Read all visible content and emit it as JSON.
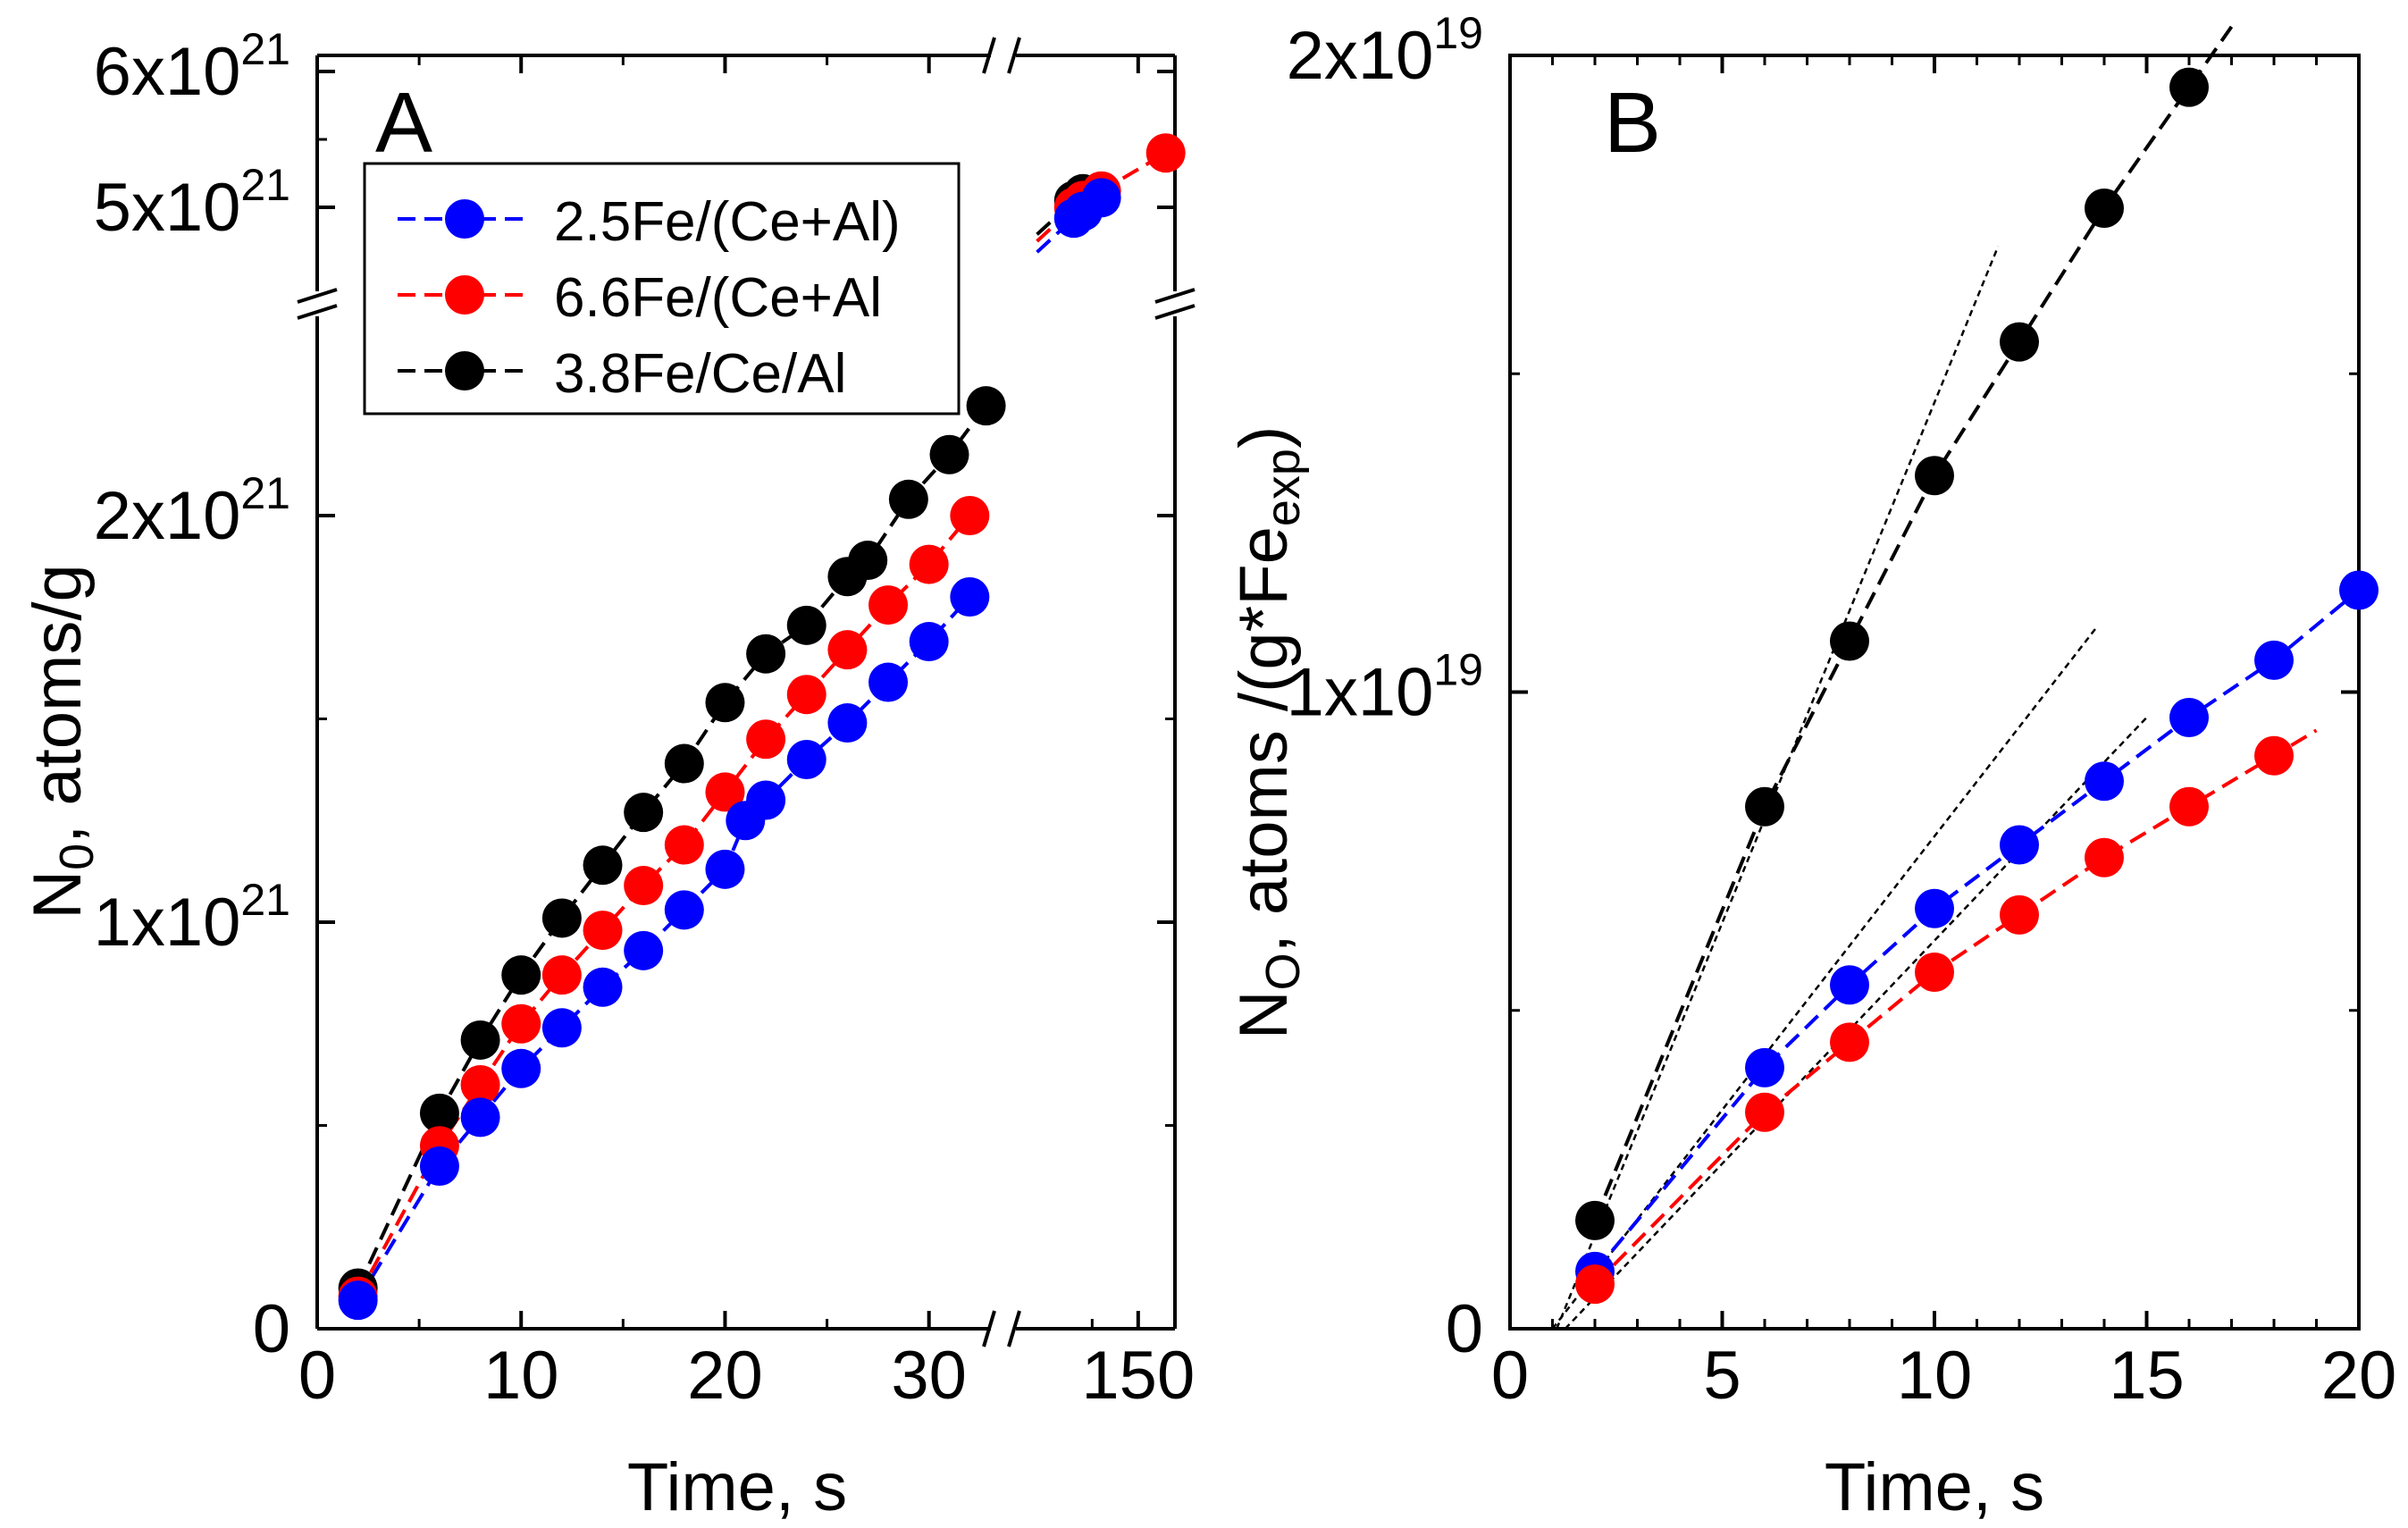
{
  "chart_data": [
    {
      "panel": "A",
      "type": "scatter",
      "panel_label": "A",
      "xlabel": "Time, s",
      "ylabel_main": "N",
      "ylabel_sub": "0",
      "ylabel_rest": ", atoms/g",
      "x_axis_break": true,
      "y_axis_break": true,
      "x_ticks": [
        {
          "x": 0,
          "label": "0"
        },
        {
          "x": 10,
          "label": "10"
        },
        {
          "x": 20,
          "label": "20"
        },
        {
          "x": 30,
          "label": "30"
        },
        {
          "x": 150,
          "label": "150"
        }
      ],
      "y_ticks": [
        {
          "y": 0,
          "base": "0",
          "exp": ""
        },
        {
          "y": 1e+21,
          "base": "1x10",
          "exp": "21"
        },
        {
          "y": 2e+21,
          "base": "2x10",
          "exp": "21"
        },
        {
          "y": 5e+21,
          "base": "5x10",
          "exp": "21"
        },
        {
          "y": 6e+21,
          "base": "6x10",
          "exp": "21"
        }
      ],
      "legend": {
        "placement": "top-left",
        "entries": [
          {
            "label": "2.5Fe/(Ce+Al)",
            "color": "#0000ff"
          },
          {
            "label": "6.6Fe/(Ce+Al",
            "color": "#ff0000"
          },
          {
            "label": "3.8Fe/Ce/Al",
            "color": "#000000"
          }
        ]
      },
      "series": [
        {
          "name": "2.5Fe/(Ce+Al)",
          "color": "#0000ff",
          "x": [
            2,
            6,
            8,
            10,
            12,
            14,
            16,
            18,
            20,
            21,
            22,
            24,
            26,
            28,
            30,
            32
          ],
          "y": [
            7e+19,
            4e+20,
            5.2e+20,
            6.4e+20,
            7.4e+20,
            8.4e+20,
            9.3e+20,
            1.03e+21,
            1.13e+21,
            1.25e+21,
            1.3e+21,
            1.4e+21,
            1.49e+21,
            1.59e+21,
            1.69e+21,
            1.8e+21
          ],
          "upper_x": [
            143,
            144,
            146
          ],
          "upper_y": [
            4.92e+21,
            4.97e+21,
            5.07e+21
          ]
        },
        {
          "name": "6.6Fe/(Ce+Al",
          "color": "#ff0000",
          "x": [
            2,
            6,
            8,
            10,
            12,
            14,
            16,
            18,
            20,
            22,
            24,
            26,
            28,
            30,
            32
          ],
          "y": [
            8e+19,
            4.5e+20,
            6e+20,
            7.5e+20,
            8.7e+20,
            9.8e+20,
            1.09e+21,
            1.19e+21,
            1.32e+21,
            1.45e+21,
            1.56e+21,
            1.67e+21,
            1.78e+21,
            1.88e+21,
            2e+21
          ],
          "upper_x": [
            143,
            144,
            146,
            153
          ],
          "upper_y": [
            5e+21,
            5.05e+21,
            5.12e+21,
            5.4e+21
          ]
        },
        {
          "name": "3.8Fe/Ce/Al",
          "color": "#000000",
          "x": [
            2,
            6,
            8,
            10,
            12,
            14,
            16,
            18,
            20,
            22,
            24,
            26,
            27,
            29,
            31,
            32.8
          ],
          "y": [
            1e+20,
            5.3e+20,
            7.1e+20,
            8.7e+20,
            1.01e+21,
            1.14e+21,
            1.27e+21,
            1.39e+21,
            1.54e+21,
            1.66e+21,
            1.73e+21,
            1.85e+21,
            1.89e+21,
            2.04e+21,
            2.15e+21,
            2.27e+21
          ],
          "upper_x": [
            143,
            144
          ],
          "upper_y": [
            5.05e+21,
            5.1e+21
          ]
        }
      ]
    },
    {
      "panel": "B",
      "type": "scatter",
      "panel_label": "B",
      "xlabel": "Time, s",
      "ylabel_main": "N",
      "ylabel_sub": "O",
      "ylabel_rest": ", atoms /(g*Fe",
      "ylabel_sub2": "exp",
      "ylabel_end": ")",
      "xlim": [
        0,
        20
      ],
      "ylim": [
        0,
        2e+19
      ],
      "x_ticks": [
        {
          "x": 0,
          "label": "0"
        },
        {
          "x": 5,
          "label": "5"
        },
        {
          "x": 10,
          "label": "10"
        },
        {
          "x": 15,
          "label": "15"
        },
        {
          "x": 20,
          "label": "20"
        }
      ],
      "y_ticks": [
        {
          "y": 0,
          "base": "0",
          "exp": ""
        },
        {
          "y": 1e+19,
          "base": "1x10",
          "exp": "19"
        },
        {
          "y": 2e+19,
          "base": "2x10",
          "exp": "19"
        }
      ],
      "series": [
        {
          "name": "2.5Fe/(Ce+Al)",
          "color": "#0000ff",
          "x": [
            2,
            6,
            8,
            10,
            12,
            14,
            16,
            18,
            20
          ],
          "y": [
            9e+17,
            4.1e+18,
            5.4e+18,
            6.6e+18,
            7.6e+18,
            8.6e+18,
            9.6e+18,
            1.05e+19,
            1.16e+19
          ]
        },
        {
          "name": "6.6Fe/(Ce+Al",
          "color": "#ff0000",
          "x": [
            2,
            6,
            8,
            10,
            12,
            14,
            16,
            18
          ],
          "y": [
            7e+17,
            3.4e+18,
            4.5e+18,
            5.6e+18,
            6.5e+18,
            7.4e+18,
            8.2e+18,
            9e+18
          ]
        },
        {
          "name": "3.8Fe/Ce/Al",
          "color": "#000000",
          "x": [
            2,
            6,
            8,
            10,
            12,
            14,
            16
          ],
          "y": [
            1.7e+18,
            8.2e+18,
            1.08e+19,
            1.34e+19,
            1.55e+19,
            1.76e+19,
            1.95e+19
          ]
        }
      ],
      "initial_slope_lines": [
        {
          "x": [
            1.1,
            11.5
          ],
          "y": [
            0.0,
            1.7e+19
          ]
        },
        {
          "x": [
            1.0,
            13.8
          ],
          "y": [
            0.0,
            1.1e+19
          ]
        },
        {
          "x": [
            1.3,
            15.0
          ],
          "y": [
            0.0,
            9.6e+18
          ]
        }
      ]
    }
  ]
}
